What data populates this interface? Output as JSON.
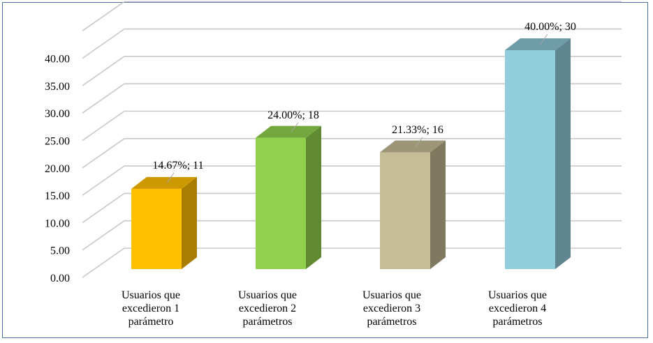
{
  "chart_data": {
    "type": "bar",
    "style": "3d-column",
    "categories": [
      [
        "Usuarios que",
        "excedieron 1",
        "parámetro"
      ],
      [
        "Usuarios que",
        "excedieron 2",
        "parámetros"
      ],
      [
        "Usuarios que",
        "excedieron 3",
        "parámetros"
      ],
      [
        "Usuarios que",
        "excedieron 4",
        "parámetros"
      ]
    ],
    "values": [
      14.67,
      24.0,
      21.33,
      40.0
    ],
    "counts": [
      11,
      18,
      16,
      30
    ],
    "data_labels": [
      "14.67%; 11",
      "24.00%; 18",
      "21.33%; 16",
      "40.00%; 30"
    ],
    "colors": [
      "#FFC000",
      "#92D050",
      "#C4BD97",
      "#92CDDC"
    ],
    "side_colors": [
      "#A87D00",
      "#5F8A32",
      "#7F7A5F",
      "#5F8590"
    ],
    "top_colors": [
      "#CC9A00",
      "#74A83E",
      "#9C9676",
      "#6E9CA8"
    ],
    "y_ticks": [
      "0.00",
      "5.00",
      "10.00",
      "15.00",
      "20.00",
      "25.00",
      "30.00",
      "35.00",
      "40.00"
    ],
    "ylim": [
      0,
      45
    ],
    "grid": true,
    "legend": "none",
    "title": "",
    "xlabel": "",
    "ylabel": ""
  }
}
